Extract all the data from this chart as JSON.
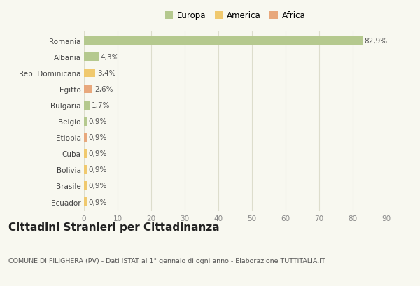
{
  "categories": [
    "Romania",
    "Albania",
    "Rep. Dominicana",
    "Egitto",
    "Bulgaria",
    "Belgio",
    "Etiopia",
    "Cuba",
    "Bolivia",
    "Brasile",
    "Ecuador"
  ],
  "values": [
    82.9,
    4.3,
    3.4,
    2.6,
    1.7,
    0.9,
    0.9,
    0.9,
    0.9,
    0.9,
    0.9
  ],
  "labels": [
    "82,9%",
    "4,3%",
    "3,4%",
    "2,6%",
    "1,7%",
    "0,9%",
    "0,9%",
    "0,9%",
    "0,9%",
    "0,9%",
    "0,9%"
  ],
  "continent": [
    "Europa",
    "Europa",
    "America",
    "Africa",
    "Europa",
    "Europa",
    "Africa",
    "America",
    "America",
    "America",
    "America"
  ],
  "colors": {
    "Europa": "#b5c98e",
    "America": "#f0c96e",
    "Africa": "#e8a87c"
  },
  "legend_labels": [
    "Europa",
    "America",
    "Africa"
  ],
  "legend_colors": [
    "#b5c98e",
    "#f0c96e",
    "#e8a87c"
  ],
  "xlim": [
    0,
    90
  ],
  "xticks": [
    0,
    10,
    20,
    30,
    40,
    50,
    60,
    70,
    80,
    90
  ],
  "title": "Cittadini Stranieri per Cittadinanza",
  "subtitle": "COMUNE DI FILIGHERA (PV) - Dati ISTAT al 1° gennaio di ogni anno - Elaborazione TUTTITALIA.IT",
  "background_color": "#f8f8f0",
  "grid_color": "#ddddcc",
  "bar_height": 0.55,
  "label_fontsize": 7.5,
  "tick_fontsize": 7.5,
  "legend_fontsize": 8.5,
  "title_fontsize": 11,
  "subtitle_fontsize": 6.8
}
